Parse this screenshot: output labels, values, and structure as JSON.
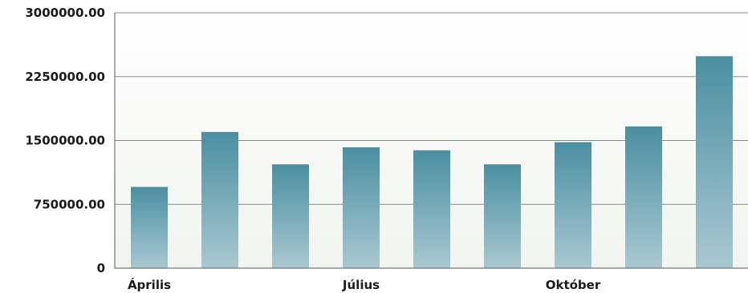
{
  "chart_data": {
    "type": "bar",
    "categories": [
      "",
      "",
      "",
      "",
      "",
      "",
      "",
      "",
      ""
    ],
    "category_labels": [
      "Április",
      "",
      "",
      "Július",
      "",
      "",
      "Október",
      "",
      ""
    ],
    "values": [
      955000,
      1600000,
      1220000,
      1420000,
      1385000,
      1220000,
      1480000,
      1665000,
      2490000
    ],
    "ylim": [
      0,
      3000000
    ],
    "yticks": [
      0,
      750000,
      1500000,
      2250000,
      3000000
    ],
    "ytick_labels": [
      "0",
      "750000.00",
      "1500000.00",
      "2250000.00",
      "3000000.00"
    ],
    "grid": true,
    "colors": {
      "bar_top": "#4a8fa1",
      "bar_bottom": "#a9c8d2",
      "plot_bg_top": "#ffffff",
      "plot_bg_bottom": "#f1f4ef",
      "grid": "#8a8a8a",
      "axis": "#5a5a5a"
    }
  }
}
